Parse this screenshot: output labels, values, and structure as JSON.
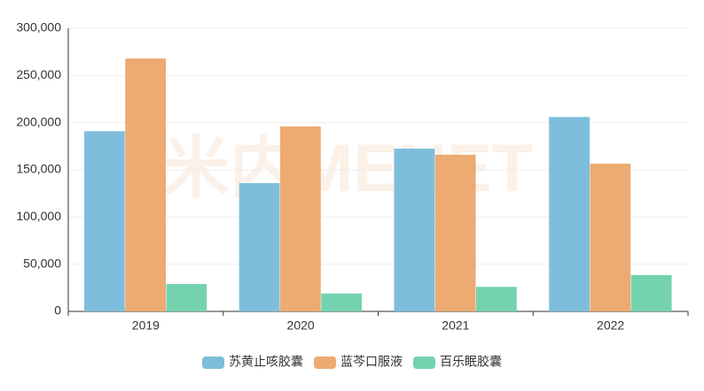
{
  "chart_data": {
    "type": "bar",
    "watermark": "米内MENET",
    "categories": [
      "2019",
      "2020",
      "2021",
      "2022"
    ],
    "series": [
      {
        "name": "苏黄止咳胶囊",
        "color": "#7ebedc",
        "values": [
          191000,
          136000,
          172500,
          206000
        ]
      },
      {
        "name": "蓝芩口服液",
        "color": "#edaa72",
        "values": [
          268000,
          196000,
          166000,
          156500
        ]
      },
      {
        "name": "百乐眠胶囊",
        "color": "#74d3ae",
        "values": [
          29000,
          19000,
          26000,
          38500
        ]
      }
    ],
    "ylim": [
      0,
      300000
    ],
    "yticks": [
      0,
      {
        "value": 50000,
        "label": "50,000"
      },
      {
        "value": 100000,
        "label": "100,000"
      },
      {
        "value": 150000,
        "label": "150,000"
      },
      {
        "value": 200000,
        "label": "200,000"
      },
      {
        "value": 250000,
        "label": "250,000"
      },
      {
        "value": 300000,
        "label": "300,000"
      }
    ],
    "grid": true,
    "legend": "bottom"
  }
}
